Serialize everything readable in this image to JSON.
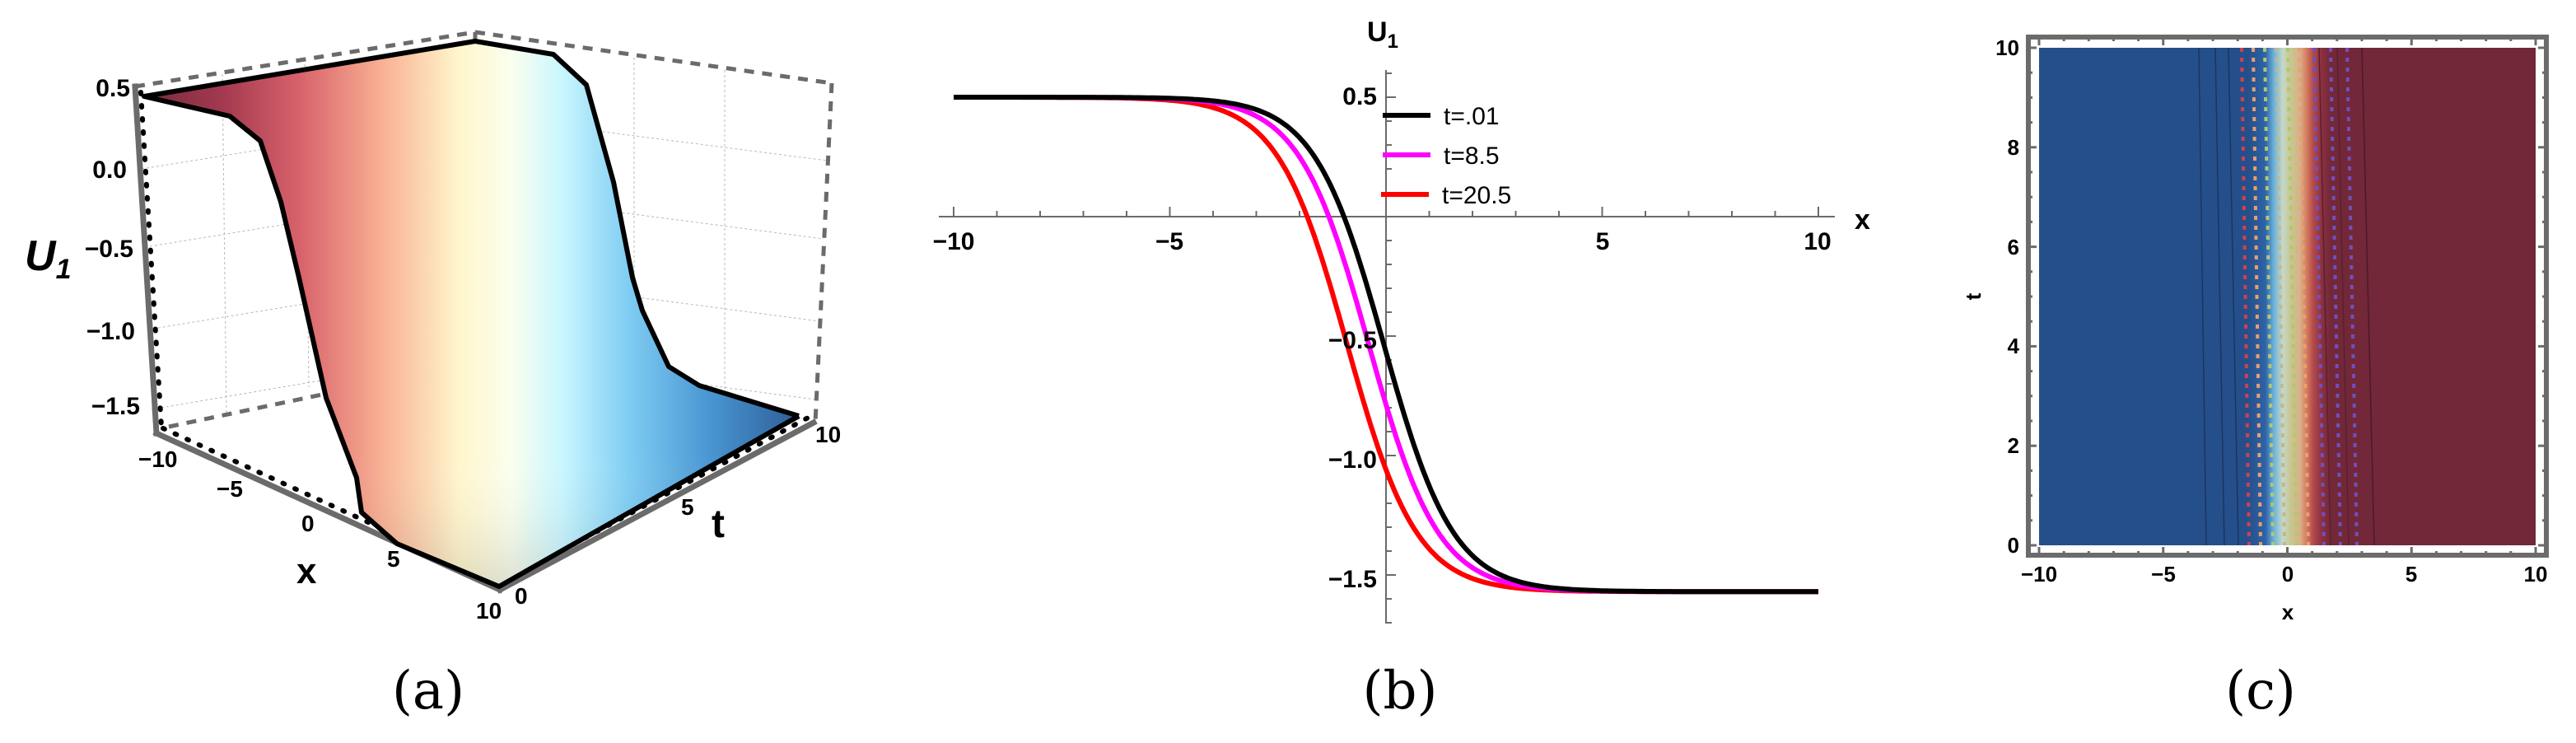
{
  "figure": {
    "captions": [
      "(a)",
      "(b)",
      "(c)"
    ]
  },
  "panel_a": {
    "type": "surface3d",
    "zlabel": "U",
    "zlabel_sub": "1",
    "xlabel": "x",
    "tlabel": "t",
    "z_ticks": [
      "0.5",
      "0.0",
      "−0.5",
      "−1.0",
      "−1.5"
    ],
    "x_ticks": [
      "−10",
      "−5",
      "0",
      "5",
      "10"
    ],
    "t_ticks": [
      "0",
      "5",
      "10"
    ]
  },
  "panel_b": {
    "ylabel": "U",
    "ylabel_sub": "1",
    "xlabel": "x",
    "x_ticks": [
      "−10",
      "−5",
      "5",
      "10"
    ],
    "y_ticks": [
      "0.5",
      "−0.5",
      "−1.0",
      "−1.5"
    ],
    "legend": [
      {
        "label": "t=.01",
        "color": "#000000"
      },
      {
        "label": "t=8.5",
        "color": "#ff00ff"
      },
      {
        "label": "t=20.5",
        "color": "#ff0000"
      }
    ]
  },
  "panel_c": {
    "type": "contour",
    "xlabel": "x",
    "ylabel": "t",
    "x_ticks": [
      "−10",
      "−5",
      "0",
      "5",
      "10"
    ],
    "y_ticks": [
      "0",
      "2",
      "4",
      "6",
      "8",
      "10"
    ],
    "colors": {
      "low": "#254f8b",
      "high": "#722838",
      "frame": "#6b6b6b"
    }
  },
  "chart_data": [
    {
      "type": "surface",
      "title": "(a)",
      "xlabel": "x",
      "ylabel": "t",
      "zlabel": "U1",
      "xlim": [
        -10,
        10
      ],
      "ylim": [
        0,
        10
      ],
      "zlim": [
        -1.6,
        0.5
      ],
      "z_ticks": [
        0.5,
        0.0,
        -0.5,
        -1.0,
        -1.5
      ],
      "x_ticks": [
        -10,
        -5,
        0,
        5,
        10
      ],
      "t_ticks": [
        0,
        5,
        10
      ],
      "description": "Kink surface: U1 ≈ 0.5 for x << 0 dropping to ≈ -1.57 for x >> 0, nearly uniform in t; red-white-blue colormap"
    },
    {
      "type": "line",
      "title": "(b)",
      "xlabel": "x",
      "ylabel": "U1",
      "xlim": [
        -10,
        10
      ],
      "ylim": [
        -1.7,
        0.6
      ],
      "x_ticks": [
        -10,
        -5,
        5,
        10
      ],
      "y_ticks": [
        0.5,
        -0.5,
        -1.0,
        -1.5
      ],
      "legend_position": "upper right of y-axis",
      "x": [
        -10,
        -6,
        -4,
        -3,
        -2,
        -1.5,
        -1,
        -0.5,
        0,
        0.5,
        1,
        1.5,
        2,
        3,
        4,
        6,
        10
      ],
      "series": [
        {
          "name": "t=.01",
          "color": "#000000",
          "values": [
            0.5,
            0.49,
            0.43,
            0.35,
            0.17,
            0.03,
            -0.12,
            -0.3,
            -0.51,
            -0.72,
            -0.93,
            -1.11,
            -1.26,
            -1.45,
            -1.53,
            -1.565,
            -1.57
          ]
        },
        {
          "name": "t=8.5",
          "color": "#ff00ff",
          "values": [
            0.5,
            0.48,
            0.41,
            0.31,
            0.11,
            -0.05,
            -0.22,
            -0.42,
            -0.62,
            -0.84,
            -1.04,
            -1.2,
            -1.33,
            -1.48,
            -1.545,
            -1.567,
            -1.57
          ]
        },
        {
          "name": "t=20.5",
          "color": "#ff0000",
          "values": [
            0.5,
            0.47,
            0.36,
            0.23,
            0.0,
            -0.18,
            -0.38,
            -0.59,
            -0.81,
            -1.03,
            -1.21,
            -1.34,
            -1.44,
            -1.53,
            -1.56,
            -1.57,
            -1.57
          ]
        }
      ]
    },
    {
      "type": "heatmap",
      "title": "(c)",
      "xlabel": "x",
      "ylabel": "t",
      "xlim": [
        -10,
        10
      ],
      "ylim": [
        0,
        10
      ],
      "x_ticks": [
        -10,
        -5,
        0,
        5,
        10
      ],
      "y_ticks": [
        0,
        2,
        4,
        6,
        8,
        10
      ],
      "description": "Contour plot: blue region x < -2, banded transition (light blue, tan, green, orange) near x ∈ [-2, 2.5], dark red region x > 2.5; contour bands tilt slightly left as t increases"
    }
  ]
}
